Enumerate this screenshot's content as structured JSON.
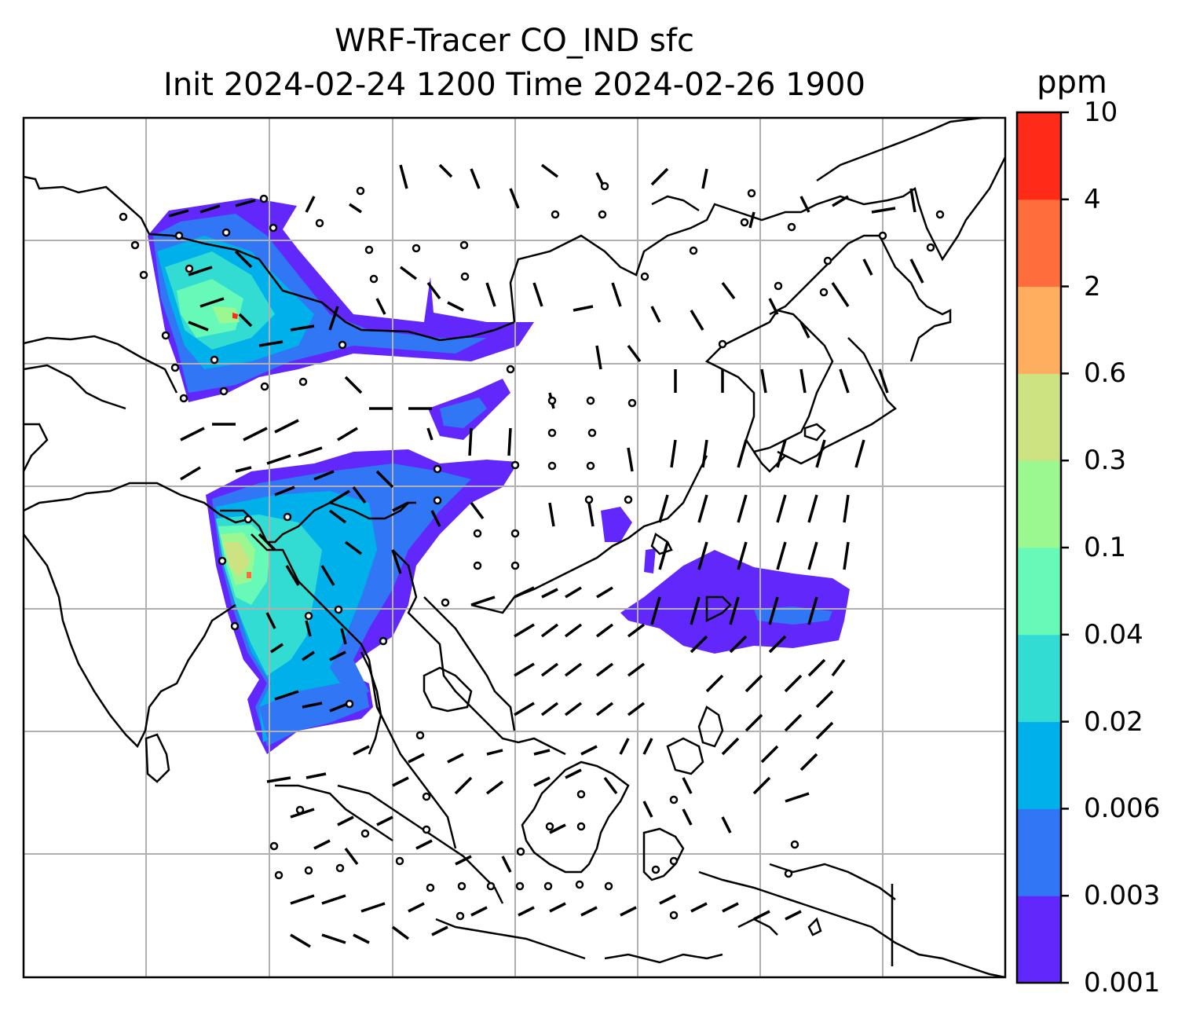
{
  "title": {
    "line1": "WRF-Tracer CO_IND sfc",
    "line2": "Init 2024-02-24 1200 Time 2024-02-26 1900"
  },
  "colorbar": {
    "label": "ppm",
    "levels": [
      "0.001",
      "0.003",
      "0.006",
      "0.02",
      "0.04",
      "0.1",
      "0.3",
      "0.6",
      "2",
      "4",
      "10"
    ],
    "colors": [
      "#6228fb",
      "#3176f5",
      "#00b0eb",
      "#32dcd2",
      "#66f9b8",
      "#9bf891",
      "#cde281",
      "#ffad5f",
      "#ff6d3c",
      "#ff2a18"
    ]
  },
  "map": {
    "gridlines": true,
    "coastline_color": "#000000",
    "grid_color": "#b0b0b0",
    "wind_barbs": true
  }
}
